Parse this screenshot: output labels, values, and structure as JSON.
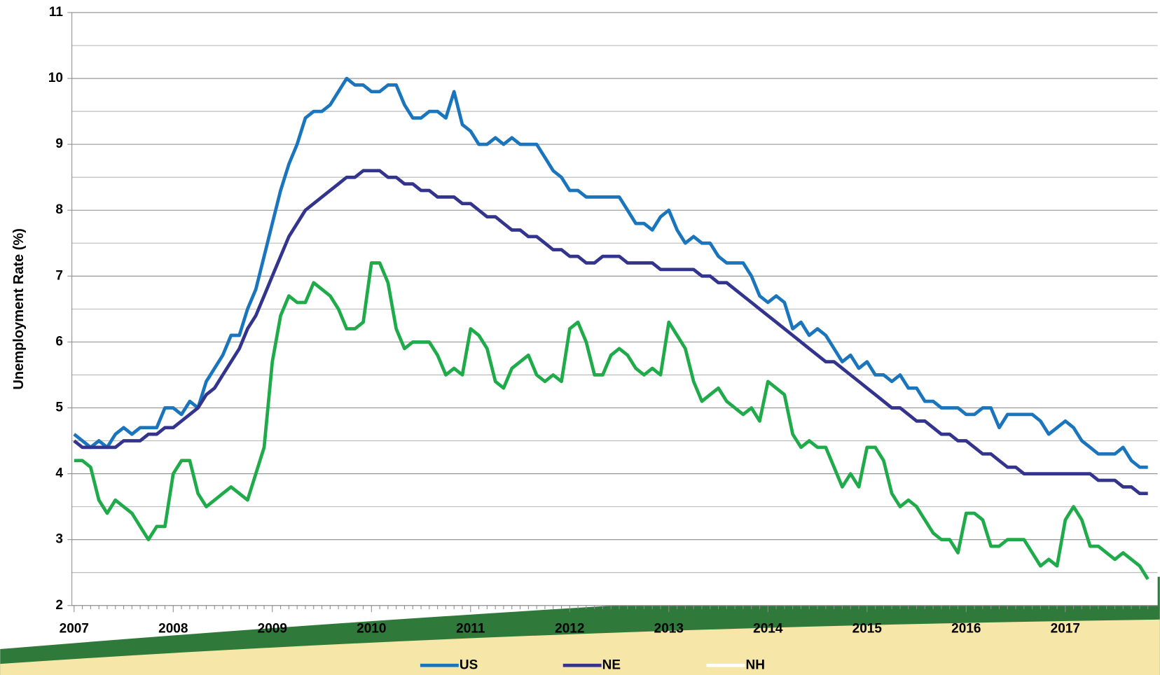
{
  "chart_data": {
    "type": "line",
    "y_label": "Unemployment Rate (%)",
    "categories": [
      "2007",
      null,
      null,
      null,
      null,
      null,
      null,
      null,
      null,
      null,
      null,
      null,
      "2008",
      null,
      null,
      null,
      null,
      null,
      null,
      null,
      null,
      null,
      null,
      null,
      "2009",
      null,
      null,
      null,
      null,
      null,
      null,
      null,
      null,
      null,
      null,
      null,
      "2010",
      null,
      null,
      null,
      null,
      null,
      null,
      null,
      null,
      null,
      null,
      null,
      "2011",
      null,
      null,
      null,
      null,
      null,
      null,
      null,
      null,
      null,
      null,
      null,
      "2012",
      null,
      null,
      null,
      null,
      null,
      null,
      null,
      null,
      null,
      null,
      null,
      "2013",
      null,
      null,
      null,
      null,
      null,
      null,
      null,
      null,
      null,
      null,
      null,
      "2014",
      null,
      null,
      null,
      null,
      null,
      null,
      null,
      null,
      null,
      null,
      null,
      "2015",
      null,
      null,
      null,
      null,
      null,
      null,
      null,
      null,
      null,
      null,
      null,
      "2016",
      null,
      null,
      null,
      null,
      null,
      null,
      null,
      null,
      null,
      null,
      null,
      "2017",
      null,
      null,
      null,
      null,
      null,
      null,
      null,
      null,
      null,
      null
    ],
    "series": [
      {
        "name": "US",
        "color": "#1a75bc",
        "values": [
          4.6,
          4.5,
          4.4,
          4.5,
          4.4,
          4.6,
          4.7,
          4.6,
          4.7,
          4.7,
          4.7,
          5.0,
          5.0,
          4.9,
          5.1,
          5.0,
          5.4,
          5.6,
          5.8,
          6.1,
          6.1,
          6.5,
          6.8,
          7.3,
          7.8,
          8.3,
          8.7,
          9.0,
          9.4,
          9.5,
          9.5,
          9.6,
          9.8,
          10.0,
          9.9,
          9.9,
          9.8,
          9.8,
          9.9,
          9.9,
          9.6,
          9.4,
          9.4,
          9.5,
          9.5,
          9.4,
          9.8,
          9.3,
          9.2,
          9.0,
          9.0,
          9.1,
          9.0,
          9.1,
          9.0,
          9.0,
          9.0,
          8.8,
          8.6,
          8.5,
          8.3,
          8.3,
          8.2,
          8.2,
          8.2,
          8.2,
          8.2,
          8.0,
          7.8,
          7.8,
          7.7,
          7.9,
          8.0,
          7.7,
          7.5,
          7.6,
          7.5,
          7.5,
          7.3,
          7.2,
          7.2,
          7.2,
          7.0,
          6.7,
          6.6,
          6.7,
          6.6,
          6.2,
          6.3,
          6.1,
          6.2,
          6.1,
          5.9,
          5.7,
          5.8,
          5.6,
          5.7,
          5.5,
          5.5,
          5.4,
          5.5,
          5.3,
          5.3,
          5.1,
          5.1,
          5.0,
          5.0,
          5.0,
          4.9,
          4.9,
          5.0,
          5.0,
          4.7,
          4.9,
          4.9,
          4.9,
          4.9,
          4.8,
          4.6,
          4.7,
          4.8,
          4.7,
          4.5,
          4.4,
          4.3,
          4.3,
          4.3,
          4.4,
          4.2,
          4.1,
          4.1
        ]
      },
      {
        "name": "NE",
        "color": "#33348e",
        "values": [
          4.5,
          4.4,
          4.4,
          4.4,
          4.4,
          4.4,
          4.5,
          4.5,
          4.5,
          4.6,
          4.6,
          4.7,
          4.7,
          4.8,
          4.9,
          5.0,
          5.2,
          5.3,
          5.5,
          5.7,
          5.9,
          6.2,
          6.4,
          6.7,
          7.0,
          7.3,
          7.6,
          7.8,
          8.0,
          8.1,
          8.2,
          8.3,
          8.4,
          8.5,
          8.5,
          8.6,
          8.6,
          8.6,
          8.5,
          8.5,
          8.4,
          8.4,
          8.3,
          8.3,
          8.2,
          8.2,
          8.2,
          8.1,
          8.1,
          8.0,
          7.9,
          7.9,
          7.8,
          7.7,
          7.7,
          7.6,
          7.6,
          7.5,
          7.4,
          7.4,
          7.3,
          7.3,
          7.2,
          7.2,
          7.3,
          7.3,
          7.3,
          7.2,
          7.2,
          7.2,
          7.2,
          7.1,
          7.1,
          7.1,
          7.1,
          7.1,
          7.0,
          7.0,
          6.9,
          6.9,
          6.8,
          6.7,
          6.6,
          6.5,
          6.4,
          6.3,
          6.2,
          6.1,
          6.0,
          5.9,
          5.8,
          5.7,
          5.7,
          5.6,
          5.5,
          5.4,
          5.3,
          5.2,
          5.1,
          5.0,
          5.0,
          4.9,
          4.8,
          4.8,
          4.7,
          4.6,
          4.6,
          4.5,
          4.5,
          4.4,
          4.3,
          4.3,
          4.2,
          4.1,
          4.1,
          4.0,
          4.0,
          4.0,
          4.0,
          4.0,
          4.0,
          4.0,
          4.0,
          4.0,
          3.9,
          3.9,
          3.9,
          3.8,
          3.8,
          3.7,
          3.7
        ]
      },
      {
        "name": "NH",
        "color": "#1fab4a",
        "legend_color": "#ffffff",
        "values": [
          4.2,
          4.2,
          4.1,
          3.6,
          3.4,
          3.6,
          3.5,
          3.4,
          3.2,
          3.0,
          3.2,
          3.2,
          4.0,
          4.2,
          4.2,
          3.7,
          3.5,
          3.6,
          3.7,
          3.8,
          3.7,
          3.6,
          4.0,
          4.4,
          5.7,
          6.4,
          6.7,
          6.6,
          6.6,
          6.9,
          6.8,
          6.7,
          6.5,
          6.2,
          6.2,
          6.3,
          7.2,
          7.2,
          6.9,
          6.2,
          5.9,
          6.0,
          6.0,
          6.0,
          5.8,
          5.5,
          5.6,
          5.5,
          6.2,
          6.1,
          5.9,
          5.4,
          5.3,
          5.6,
          5.7,
          5.8,
          5.5,
          5.4,
          5.5,
          5.4,
          6.2,
          6.3,
          6.0,
          5.5,
          5.5,
          5.8,
          5.9,
          5.8,
          5.6,
          5.5,
          5.6,
          5.5,
          6.3,
          6.1,
          5.9,
          5.4,
          5.1,
          5.2,
          5.3,
          5.1,
          5.0,
          4.9,
          5.0,
          4.8,
          5.4,
          5.3,
          5.2,
          4.6,
          4.4,
          4.5,
          4.4,
          4.4,
          4.1,
          3.8,
          4.0,
          3.8,
          4.4,
          4.4,
          4.2,
          3.7,
          3.5,
          3.6,
          3.5,
          3.3,
          3.1,
          3.0,
          3.0,
          2.8,
          3.4,
          3.4,
          3.3,
          2.9,
          2.9,
          3.0,
          3.0,
          3.0,
          2.8,
          2.6,
          2.7,
          2.6,
          3.3,
          3.5,
          3.3,
          2.9,
          2.9,
          2.8,
          2.7,
          2.8,
          2.7,
          2.6,
          2.4
        ]
      }
    ],
    "ylim": [
      2,
      11
    ],
    "yticks": [
      2,
      3,
      4,
      5,
      6,
      7,
      8,
      9,
      10,
      11
    ],
    "grid": true
  }
}
